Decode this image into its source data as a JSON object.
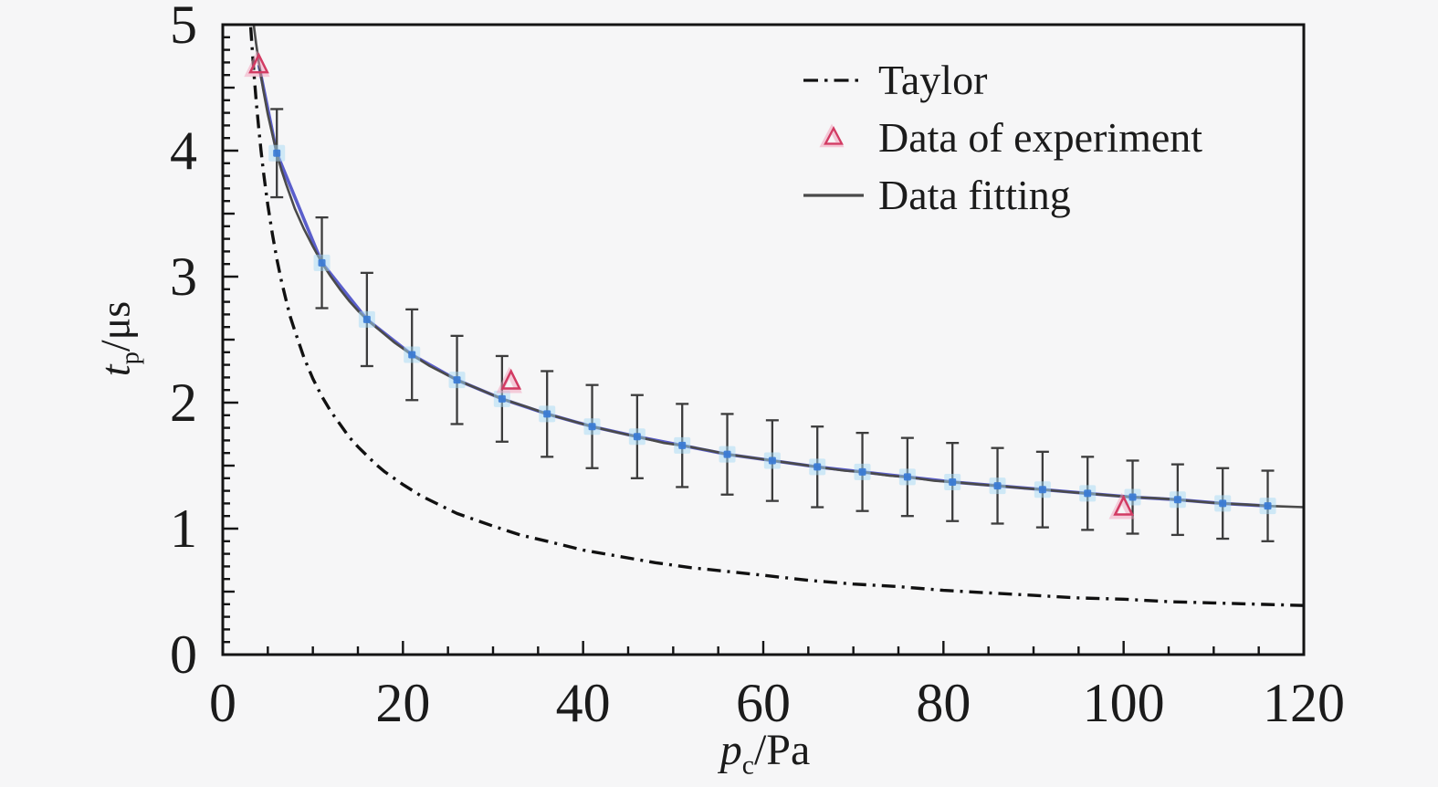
{
  "figure": {
    "background_color": "#f6f6f7",
    "axis_color": "#141414",
    "text_color": "#1b1b1b"
  },
  "chart_data": {
    "type": "line",
    "title": "",
    "xlabel": {
      "var": "p",
      "sub": "c",
      "rest": "/Pa",
      "full": "p_c/Pa"
    },
    "ylabel": {
      "var": "t",
      "sub": "p",
      "rest": "/μs",
      "full": "t_p/μs"
    },
    "xlim": [
      0,
      120
    ],
    "ylim": [
      0,
      5
    ],
    "x_ticks": [
      0,
      20,
      40,
      60,
      80,
      100,
      120
    ],
    "x_minor_step": 5,
    "y_ticks": [
      0,
      1,
      2,
      3,
      4,
      5
    ],
    "y_minor_step": 0.1,
    "grid": false,
    "legend_position": "upper right",
    "legend": [
      {
        "label": "Taylor",
        "sample": "dashdot-line",
        "color": "#111111"
      },
      {
        "label": "Data of experiment",
        "sample": "open-triangle",
        "color": "#d23b63"
      },
      {
        "label": "Data fitting",
        "sample": "solid-line",
        "color": "#4a4a4a"
      }
    ],
    "series": [
      {
        "name": "Taylor",
        "type": "line",
        "line_style": "dash-dot",
        "color": "#111111",
        "points": [
          [
            3.1,
            4.98
          ],
          [
            3.3,
            4.77
          ],
          [
            3.5,
            4.58
          ],
          [
            3.75,
            4.36
          ],
          [
            4,
            4.17
          ],
          [
            4.25,
            4.0
          ],
          [
            4.5,
            3.84
          ],
          [
            4.75,
            3.7
          ],
          [
            5,
            3.57
          ],
          [
            5.5,
            3.34
          ],
          [
            6,
            3.14
          ],
          [
            6.5,
            2.97
          ],
          [
            7,
            2.82
          ],
          [
            7.5,
            2.68
          ],
          [
            8,
            2.57
          ],
          [
            9,
            2.36
          ],
          [
            10,
            2.19
          ],
          [
            11,
            2.05
          ],
          [
            12,
            1.93
          ],
          [
            13,
            1.83
          ],
          [
            14,
            1.73
          ],
          [
            15,
            1.65
          ],
          [
            16,
            1.58
          ],
          [
            17,
            1.51
          ],
          [
            18,
            1.45
          ],
          [
            19,
            1.4
          ],
          [
            20,
            1.35
          ],
          [
            22,
            1.26
          ],
          [
            24,
            1.19
          ],
          [
            26,
            1.12
          ],
          [
            28,
            1.07
          ],
          [
            30,
            1.02
          ],
          [
            33,
            0.95
          ],
          [
            36,
            0.9
          ],
          [
            40,
            0.83
          ],
          [
            44,
            0.78
          ],
          [
            48,
            0.73
          ],
          [
            52,
            0.69
          ],
          [
            56,
            0.66
          ],
          [
            60,
            0.63
          ],
          [
            65,
            0.59
          ],
          [
            70,
            0.56
          ],
          [
            75,
            0.54
          ],
          [
            80,
            0.51
          ],
          [
            85,
            0.49
          ],
          [
            90,
            0.47
          ],
          [
            95,
            0.45
          ],
          [
            100,
            0.44
          ],
          [
            105,
            0.42
          ],
          [
            110,
            0.41
          ],
          [
            115,
            0.4
          ],
          [
            120,
            0.39
          ]
        ]
      },
      {
        "name": "Data of experiment",
        "type": "scatter",
        "marker": "open-triangle",
        "color": "#d23b63",
        "glow_color": "#f2a0bc",
        "points": [
          [
            4,
            4.68
          ],
          [
            32,
            2.17
          ],
          [
            100,
            1.17
          ]
        ]
      },
      {
        "name": "Data fitting",
        "type": "line+errorbar",
        "curve_color": "#4a4a4a",
        "data_line_color": "#5a5ecb",
        "marker_color": "#3a7bd5",
        "marker_halo_color": "#a6daf5",
        "errorbar_color": "#3c3c3c",
        "curve": [
          [
            3.44,
            5.0
          ],
          [
            3.7,
            4.85
          ],
          [
            4,
            4.7
          ],
          [
            4.5,
            4.48
          ],
          [
            5,
            4.29
          ],
          [
            5.5,
            4.13
          ],
          [
            6,
            3.98
          ],
          [
            6.5,
            3.85
          ],
          [
            7,
            3.74
          ],
          [
            7.5,
            3.64
          ],
          [
            8,
            3.54
          ],
          [
            9,
            3.38
          ],
          [
            10,
            3.24
          ],
          [
            11,
            3.11
          ],
          [
            12,
            3.0
          ],
          [
            13,
            2.9
          ],
          [
            14,
            2.81
          ],
          [
            15,
            2.73
          ],
          [
            16,
            2.66
          ],
          [
            17,
            2.6
          ],
          [
            18,
            2.54
          ],
          [
            19,
            2.48
          ],
          [
            20,
            2.43
          ],
          [
            21,
            2.38
          ],
          [
            23,
            2.29
          ],
          [
            26,
            2.18
          ],
          [
            29,
            2.09
          ],
          [
            31,
            2.03
          ],
          [
            34,
            1.96
          ],
          [
            36,
            1.91
          ],
          [
            39,
            1.85
          ],
          [
            41,
            1.81
          ],
          [
            44,
            1.76
          ],
          [
            46,
            1.73
          ],
          [
            49,
            1.68
          ],
          [
            51,
            1.66
          ],
          [
            54,
            1.62
          ],
          [
            56,
            1.59
          ],
          [
            59,
            1.56
          ],
          [
            61,
            1.54
          ],
          [
            64,
            1.51
          ],
          [
            66,
            1.49
          ],
          [
            69,
            1.46
          ],
          [
            71,
            1.45
          ],
          [
            74,
            1.42
          ],
          [
            76,
            1.41
          ],
          [
            79,
            1.38
          ],
          [
            81,
            1.37
          ],
          [
            84,
            1.35
          ],
          [
            86,
            1.34
          ],
          [
            89,
            1.32
          ],
          [
            91,
            1.31
          ],
          [
            94,
            1.29
          ],
          [
            96,
            1.28
          ],
          [
            99,
            1.26
          ],
          [
            101,
            1.25
          ],
          [
            104,
            1.24
          ],
          [
            106,
            1.23
          ],
          [
            109,
            1.21
          ],
          [
            111,
            1.2
          ],
          [
            114,
            1.19
          ],
          [
            116,
            1.18
          ],
          [
            120,
            1.17
          ]
        ],
        "data_line": [
          [
            4,
            4.68
          ],
          [
            6,
            3.98
          ],
          [
            11,
            3.11
          ],
          [
            16,
            2.66
          ],
          [
            21,
            2.38
          ],
          [
            26,
            2.18
          ],
          [
            31,
            2.03
          ],
          [
            36,
            1.91
          ],
          [
            41,
            1.81
          ],
          [
            46,
            1.73
          ],
          [
            51,
            1.66
          ],
          [
            56,
            1.59
          ],
          [
            61,
            1.54
          ],
          [
            66,
            1.49
          ],
          [
            71,
            1.45
          ],
          [
            76,
            1.41
          ],
          [
            81,
            1.37
          ],
          [
            86,
            1.34
          ],
          [
            91,
            1.31
          ],
          [
            96,
            1.28
          ],
          [
            101,
            1.25
          ],
          [
            106,
            1.23
          ],
          [
            111,
            1.2
          ],
          [
            116,
            1.18
          ]
        ],
        "points": [
          [
            6,
            3.98
          ],
          [
            11,
            3.11
          ],
          [
            16,
            2.66
          ],
          [
            21,
            2.38
          ],
          [
            26,
            2.18
          ],
          [
            31,
            2.03
          ],
          [
            36,
            1.91
          ],
          [
            41,
            1.81
          ],
          [
            46,
            1.73
          ],
          [
            51,
            1.66
          ],
          [
            56,
            1.59
          ],
          [
            61,
            1.54
          ],
          [
            66,
            1.49
          ],
          [
            71,
            1.45
          ],
          [
            76,
            1.41
          ],
          [
            81,
            1.37
          ],
          [
            86,
            1.34
          ],
          [
            91,
            1.31
          ],
          [
            96,
            1.28
          ],
          [
            101,
            1.25
          ],
          [
            106,
            1.23
          ],
          [
            111,
            1.2
          ],
          [
            116,
            1.18
          ]
        ],
        "yerr": [
          0.35,
          0.36,
          0.37,
          0.36,
          0.35,
          0.34,
          0.34,
          0.33,
          0.33,
          0.33,
          0.32,
          0.32,
          0.32,
          0.31,
          0.31,
          0.31,
          0.3,
          0.3,
          0.29,
          0.29,
          0.28,
          0.28,
          0.28
        ]
      }
    ]
  }
}
